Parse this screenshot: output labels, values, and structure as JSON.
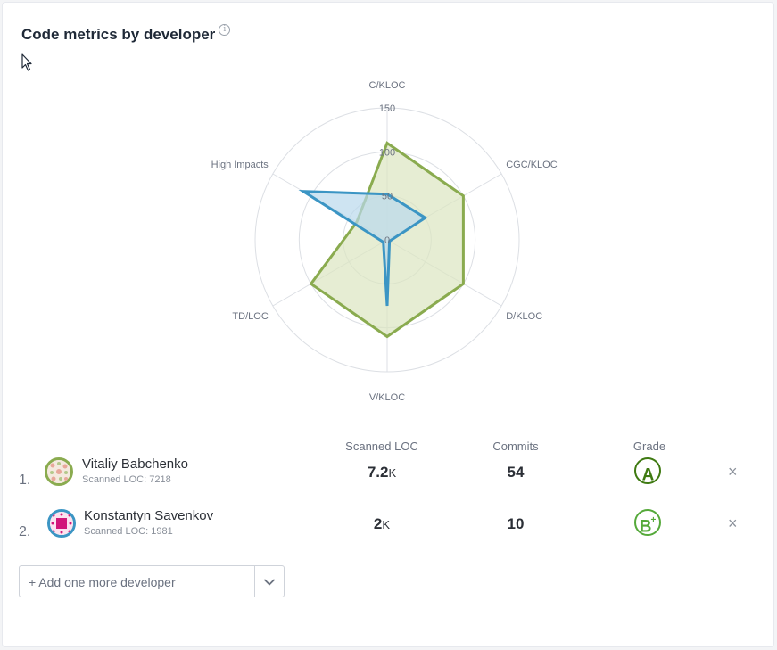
{
  "widget": {
    "title": "Code metrics by developer",
    "info_icon": "info-icon"
  },
  "chart_data": {
    "type": "radar",
    "axes": [
      "C/KLOC",
      "CGC/KLOC",
      "D/KLOC",
      "V/KLOC",
      "TD/LOC",
      "High Impacts"
    ],
    "rings": [
      0,
      50,
      100,
      150
    ],
    "range": [
      0,
      150
    ],
    "series": [
      {
        "name": "Vitaliy Babchenko",
        "color": "#8aab4f",
        "fill": "#dbe5c1",
        "values": [
          110,
          100,
          100,
          110,
          100,
          40
        ]
      },
      {
        "name": "Konstantyn Savenkov",
        "color": "#3b95c4",
        "fill": "#b9d9ec",
        "values": [
          52,
          50,
          3,
          75,
          5,
          110
        ]
      }
    ]
  },
  "table": {
    "columns": [
      "Scanned LOC",
      "Commits",
      "Grade"
    ],
    "rows": [
      {
        "rank": "1.",
        "name": "Vitaliy Babchenko",
        "sub": "Scanned LOC: 7218",
        "loc_value": "7.2",
        "loc_unit": "K",
        "commits": "54",
        "grade": "A",
        "grade_plus": "",
        "grade_color": "#3f7a12",
        "remove": "×"
      },
      {
        "rank": "2.",
        "name": "Konstantyn Savenkov",
        "sub": "Scanned LOC: 1981",
        "loc_value": "2",
        "loc_unit": "K",
        "commits": "10",
        "grade": "B",
        "grade_plus": "+",
        "grade_color": "#55a93a",
        "remove": "×"
      }
    ]
  },
  "add_developer": {
    "placeholder": "+ Add one more developer"
  }
}
